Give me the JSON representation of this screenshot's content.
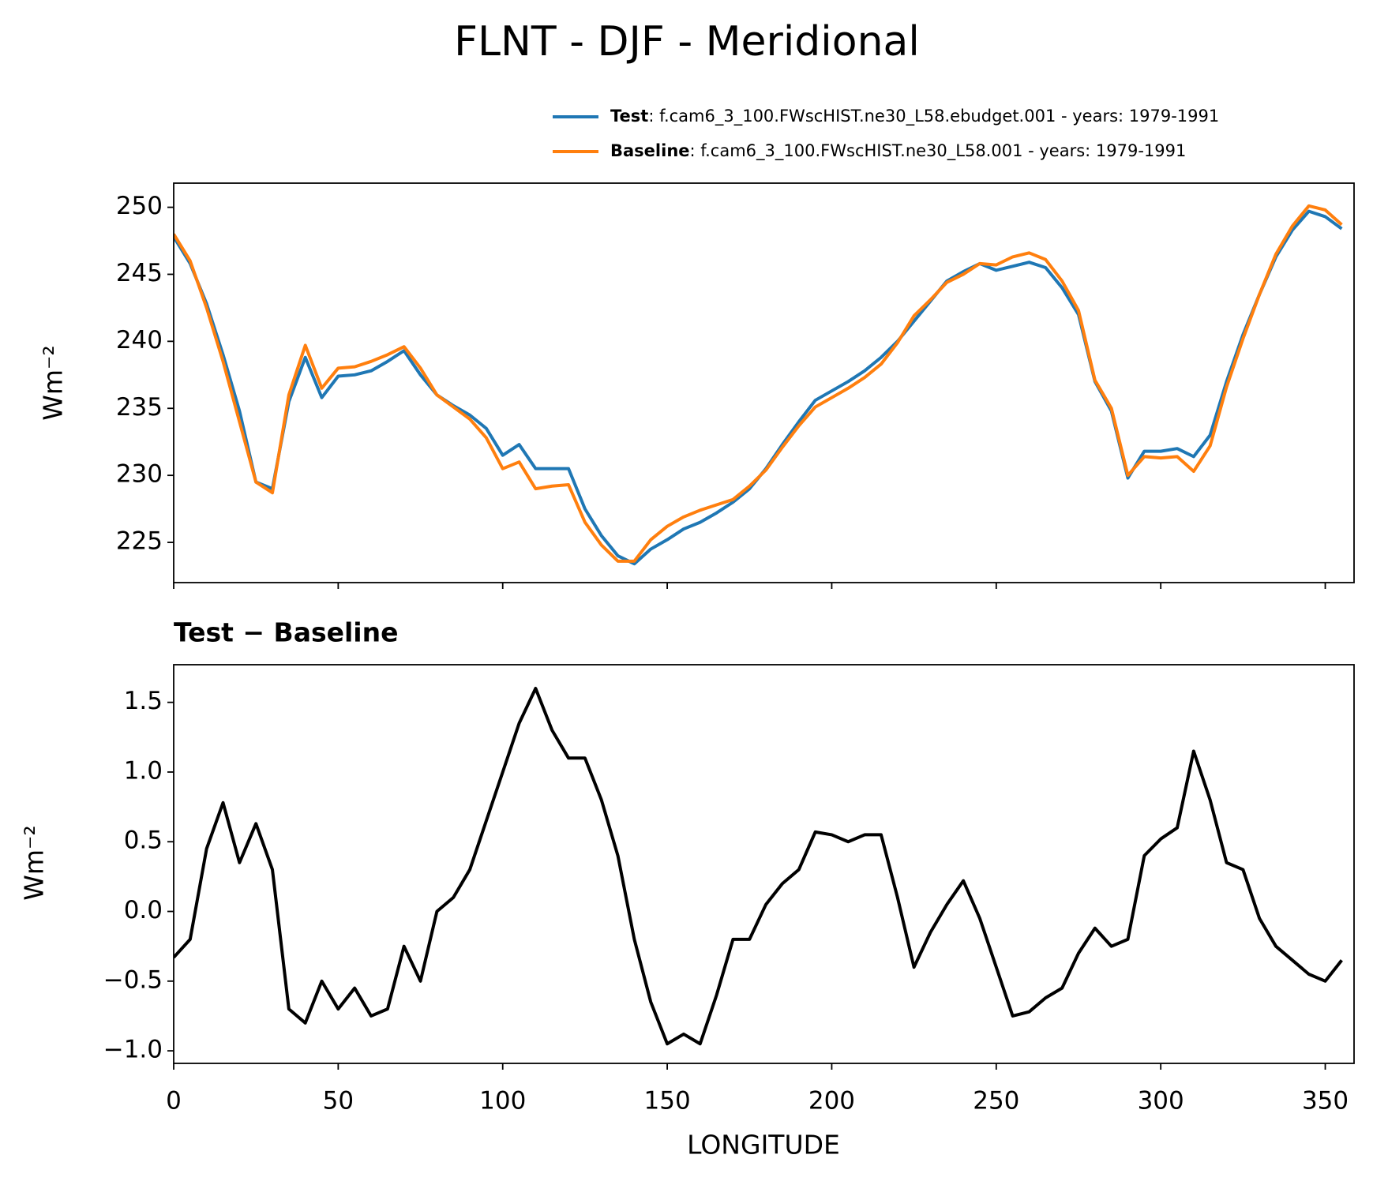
{
  "chart_data": [
    {
      "type": "line",
      "title": "FLNT - DJF - Meridional",
      "ylabel": "Wm⁻²",
      "x": [
        0,
        5,
        10,
        15,
        20,
        25,
        30,
        35,
        40,
        45,
        50,
        55,
        60,
        65,
        70,
        75,
        80,
        85,
        90,
        95,
        100,
        105,
        110,
        115,
        120,
        125,
        130,
        135,
        140,
        145,
        150,
        155,
        160,
        165,
        170,
        175,
        180,
        185,
        190,
        195,
        200,
        205,
        210,
        215,
        220,
        225,
        230,
        235,
        240,
        245,
        250,
        255,
        260,
        265,
        270,
        275,
        280,
        285,
        290,
        295,
        300,
        305,
        310,
        315,
        320,
        325,
        330,
        335,
        340,
        345,
        350,
        355
      ],
      "series": [
        {
          "name": "Test",
          "description": ": f.cam6_3_100.FWscHIST.ne30_L58.ebudget.001 - years: 1979-1991",
          "color": "#1f77b4",
          "values": [
            247.8,
            245.8,
            242.8,
            239,
            234.8,
            229.5,
            229,
            235.5,
            238.8,
            235.8,
            237.4,
            237.5,
            237.8,
            238.5,
            239.3,
            237.5,
            236,
            235.2,
            234.5,
            233.5,
            231.5,
            232.3,
            230.5,
            230.5,
            230.5,
            227.5,
            225.5,
            224,
            223.4,
            224.5,
            225.2,
            226,
            226.5,
            227.2,
            228,
            229,
            230.5,
            232.3,
            234,
            235.6,
            236.3,
            237,
            237.8,
            238.8,
            240,
            241.5,
            243,
            244.5,
            245.2,
            245.8,
            245.3,
            245.6,
            245.9,
            245.5,
            244,
            242,
            237,
            234.8,
            229.8,
            231.8,
            231.8,
            232,
            231.4,
            233,
            237,
            240.5,
            243.5,
            246.3,
            248.3,
            249.7,
            249.3,
            248.4
          ]
        },
        {
          "name": "Baseline",
          "description": ": f.cam6_3_100.FWscHIST.ne30_L58.001 - years: 1979-1991",
          "color": "#ff7f0e",
          "values": [
            248,
            246,
            242.5,
            238.5,
            234,
            229.5,
            228.7,
            236,
            239.7,
            236.5,
            238,
            238.1,
            238.5,
            239,
            239.6,
            238,
            236,
            235.1,
            234.2,
            232.8,
            230.5,
            231,
            229,
            229.2,
            229.3,
            226.5,
            224.8,
            223.6,
            223.6,
            225.2,
            226.2,
            226.9,
            227.4,
            227.8,
            228.2,
            229.2,
            230.4,
            232.1,
            233.7,
            235.1,
            235.8,
            236.5,
            237.3,
            238.3,
            239.9,
            241.9,
            243.1,
            244.4,
            245,
            245.8,
            245.7,
            246.3,
            246.6,
            246.1,
            244.5,
            242.3,
            237.1,
            235,
            230,
            231.4,
            231.3,
            231.4,
            230.3,
            232.2,
            236.6,
            240.2,
            243.5,
            246.5,
            248.6,
            250.1,
            249.8,
            248.7
          ]
        }
      ],
      "xlim": [
        0,
        358.75
      ],
      "ylim": [
        222,
        251.8
      ],
      "yticks": [
        225,
        230,
        235,
        240,
        245,
        250
      ]
    },
    {
      "type": "line",
      "title": "Test − Baseline",
      "xlabel": "LONGITUDE",
      "ylabel": "Wm⁻²",
      "color": "#000000",
      "x": [
        0,
        5,
        10,
        15,
        20,
        25,
        30,
        35,
        40,
        45,
        50,
        55,
        60,
        65,
        70,
        75,
        80,
        85,
        90,
        95,
        100,
        105,
        110,
        115,
        120,
        125,
        130,
        135,
        140,
        145,
        150,
        155,
        160,
        165,
        170,
        175,
        180,
        185,
        190,
        195,
        200,
        205,
        210,
        215,
        220,
        225,
        230,
        235,
        240,
        245,
        250,
        255,
        260,
        265,
        270,
        275,
        280,
        285,
        290,
        295,
        300,
        305,
        310,
        315,
        320,
        325,
        330,
        335,
        340,
        345,
        350,
        355
      ],
      "values": [
        -0.33,
        -0.2,
        0.45,
        0.78,
        0.35,
        0.63,
        0.3,
        -0.7,
        -0.8,
        -0.5,
        -0.7,
        -0.55,
        -0.75,
        -0.7,
        -0.25,
        -0.5,
        0.0,
        0.1,
        0.3,
        0.65,
        1.0,
        1.35,
        1.6,
        1.3,
        1.1,
        1.1,
        0.8,
        0.4,
        -0.2,
        -0.65,
        -0.95,
        -0.88,
        -0.95,
        -0.6,
        -0.2,
        -0.2,
        0.05,
        0.2,
        0.3,
        0.57,
        0.55,
        0.5,
        0.55,
        0.55,
        0.1,
        -0.4,
        -0.15,
        0.05,
        0.22,
        -0.05,
        -0.4,
        -0.75,
        -0.72,
        -0.62,
        -0.55,
        -0.3,
        -0.12,
        -0.25,
        -0.2,
        0.4,
        0.52,
        0.6,
        1.15,
        0.8,
        0.35,
        0.3,
        -0.05,
        -0.25,
        -0.35,
        -0.45,
        -0.5,
        -0.35
      ],
      "xlim": [
        0,
        358.75
      ],
      "ylim": [
        -1.09,
        1.77
      ],
      "xticks": [
        0,
        50,
        100,
        150,
        200,
        250,
        300,
        350
      ],
      "yticks": [
        {
          "value": -1.0,
          "label": "−1.0"
        },
        {
          "value": -0.5,
          "label": "−0.5"
        },
        {
          "value": 0.0,
          "label": "0.0"
        },
        {
          "value": 0.5,
          "label": "0.5"
        },
        {
          "value": 1.0,
          "label": "1.0"
        },
        {
          "value": 1.5,
          "label": "1.5"
        }
      ]
    }
  ]
}
